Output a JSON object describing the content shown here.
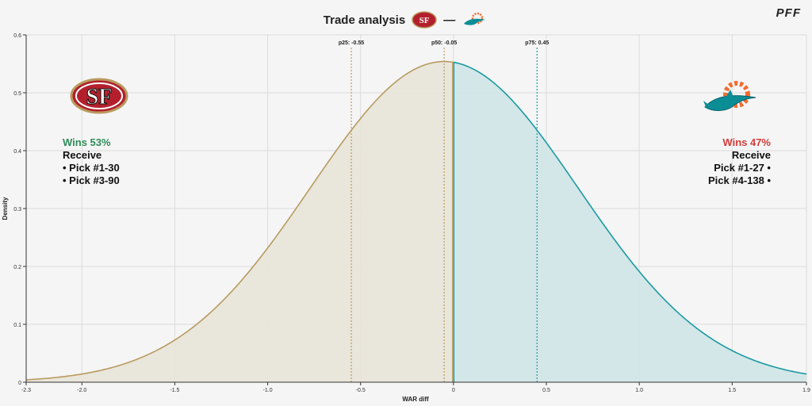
{
  "title": "Trade analysis",
  "title_separator": "—",
  "brand": "PFF",
  "colors": {
    "left_fill": "#e8e4d8",
    "left_line": "#b89b60",
    "right_fill": "#cfe6e7",
    "right_line": "#1a9aa2",
    "wins_left": "#2e8b57",
    "wins_right": "#d33a3a",
    "sf_red": "#b3202c",
    "sf_gold": "#b89b60",
    "mia_aqua": "#0b8d96",
    "mia_orange": "#f26a2e"
  },
  "teams": {
    "left": {
      "logo": "49ers-logo-icon",
      "wins": "Wins 53%",
      "receive": "Receive",
      "picks": [
        "• Pick #1-30",
        "• Pick #3-90"
      ]
    },
    "right": {
      "logo": "dolphins-logo-icon",
      "wins": "Wins 47%",
      "receive": "Receive",
      "picks": [
        "Pick #1-27 •",
        "Pick #4-138 •"
      ]
    }
  },
  "chart_data": {
    "type": "area",
    "xlabel": "WAR diff",
    "ylabel": "Density",
    "xlim": [
      -2.3,
      1.9
    ],
    "ylim": [
      0,
      0.6
    ],
    "x_ticks": [
      -2.3,
      -2.0,
      -1.5,
      -1.0,
      -0.5,
      0,
      0.5,
      1.0,
      1.5,
      1.9
    ],
    "x_tick_labels": [
      "-2.3",
      "-2.0",
      "-1.5",
      "-1.0",
      "-0.5",
      "0",
      "0.5",
      "1.0",
      "1.5",
      "1.9"
    ],
    "y_ticks": [
      0,
      0.1,
      0.2,
      0.3,
      0.4,
      0.5,
      0.6
    ],
    "y_tick_labels": [
      "0",
      "0.1",
      "0.2",
      "0.3",
      "0.4",
      "0.5",
      "0.6"
    ],
    "grid": true,
    "distribution": {
      "mean": -0.05,
      "sd": 0.72,
      "peak": 0.554
    },
    "split_x": 0,
    "series": [
      {
        "x": [
          -2.3,
          -2.0,
          -1.5,
          -1.0,
          -0.5,
          -0.05,
          0
        ],
        "y": [
          0.016,
          0.032,
          0.072,
          0.207,
          0.401,
          0.554,
          0.553
        ]
      },
      {
        "x": [
          0,
          0.5,
          1.0,
          1.5,
          1.9
        ],
        "y": [
          0.553,
          0.393,
          0.205,
          0.077,
          0.02
        ]
      }
    ],
    "percentiles": [
      {
        "x": -0.55,
        "label": "p25: -0.55",
        "side": "left"
      },
      {
        "x": -0.05,
        "label": "p50: -0.05",
        "side": "left"
      },
      {
        "x": 0.45,
        "label": "p75: 0.45",
        "side": "right"
      }
    ]
  }
}
